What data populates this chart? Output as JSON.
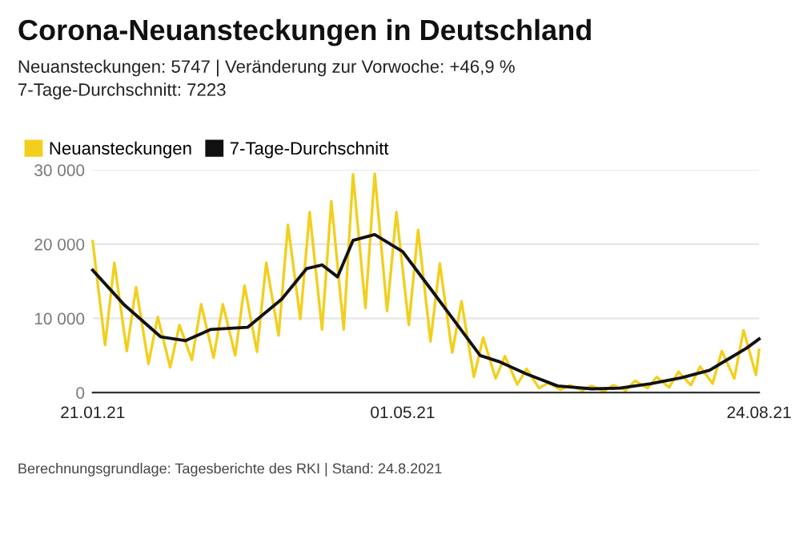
{
  "chart_data": {
    "type": "line",
    "title": "Corona-Neuansteckungen in Deutschland",
    "subtitle": "Neuansteckungen: 5747 | Veränderung zur Vorwoche: +46,9 %\n7-Tage-Durchschnitt: 7223",
    "annotations": [
      "Berechnungsgrundlage: Tagesberichte des RKI | Stand: 24.8.2021"
    ],
    "series": [
      {
        "name": "Neuansteckungen",
        "color": "#f2cf1d",
        "x": [
          "2021-01-21",
          "2021-01-25",
          "2021-01-28",
          "2021-02-01",
          "2021-02-04",
          "2021-02-08",
          "2021-02-11",
          "2021-02-15",
          "2021-02-18",
          "2021-02-22",
          "2021-02-25",
          "2021-03-01",
          "2021-03-04",
          "2021-03-08",
          "2021-03-11",
          "2021-03-15",
          "2021-03-18",
          "2021-03-22",
          "2021-03-25",
          "2021-03-29",
          "2021-04-01",
          "2021-04-05",
          "2021-04-08",
          "2021-04-12",
          "2021-04-15",
          "2021-04-19",
          "2021-04-22",
          "2021-04-26",
          "2021-04-29",
          "2021-05-03",
          "2021-05-06",
          "2021-05-10",
          "2021-05-13",
          "2021-05-17",
          "2021-05-20",
          "2021-05-24",
          "2021-05-27",
          "2021-05-31",
          "2021-06-03",
          "2021-06-07",
          "2021-06-10",
          "2021-06-14",
          "2021-06-17",
          "2021-06-21",
          "2021-06-24",
          "2021-06-28",
          "2021-07-01",
          "2021-07-05",
          "2021-07-08",
          "2021-07-12",
          "2021-07-15",
          "2021-07-19",
          "2021-07-22",
          "2021-07-26",
          "2021-07-29",
          "2021-08-02",
          "2021-08-05",
          "2021-08-09",
          "2021-08-12",
          "2021-08-16",
          "2021-08-19",
          "2021-08-23",
          "2021-08-24"
        ],
        "values": [
          20400,
          6400,
          17500,
          5600,
          14200,
          3900,
          10200,
          3400,
          9100,
          4400,
          11900,
          4700,
          11900,
          5000,
          14400,
          5500,
          17500,
          7700,
          22600,
          9900,
          24300,
          8500,
          25800,
          8500,
          29400,
          11400,
          29500,
          11000,
          24300,
          9100,
          21900,
          6900,
          17400,
          5400,
          12300,
          2100,
          7400,
          1900,
          4900,
          1100,
          3200,
          600,
          1300,
          400,
          1000,
          300,
          900,
          200,
          1000,
          300,
          1600,
          600,
          2100,
          700,
          2800,
          1000,
          3500,
          1200,
          5600,
          1900,
          8400,
          2400,
          5747
        ]
      },
      {
        "name": "7-Tage-Durchschnitt",
        "color": "#111111",
        "x": [
          "2021-01-21",
          "2021-01-31",
          "2021-02-12",
          "2021-02-20",
          "2021-02-28",
          "2021-03-12",
          "2021-03-23",
          "2021-03-31",
          "2021-04-05",
          "2021-04-10",
          "2021-04-15",
          "2021-04-22",
          "2021-05-01",
          "2021-05-10",
          "2021-05-18",
          "2021-05-26",
          "2021-06-01",
          "2021-06-10",
          "2021-06-20",
          "2021-07-01",
          "2021-07-10",
          "2021-07-20",
          "2021-07-30",
          "2021-08-08",
          "2021-08-14",
          "2021-08-20",
          "2021-08-24"
        ],
        "values": [
          16500,
          11900,
          7500,
          7000,
          8500,
          8800,
          12600,
          16700,
          17200,
          15600,
          20500,
          21300,
          19000,
          14000,
          9500,
          5000,
          4200,
          2500,
          900,
          500,
          600,
          1200,
          2000,
          3000,
          4500,
          6000,
          7223
        ]
      }
    ],
    "xlim": [
      "2021-01-21",
      "2021-08-24"
    ],
    "xticks": [
      {
        "value": "2021-01-21",
        "label": "21.01.21"
      },
      {
        "value": "2021-05-01",
        "label": "01.05.21"
      },
      {
        "value": "2021-08-24",
        "label": "24.08.21"
      }
    ],
    "ylim": [
      0,
      30000
    ],
    "yticks": [
      {
        "value": 0,
        "label": "0"
      },
      {
        "value": 10000,
        "label": "10 000"
      },
      {
        "value": 20000,
        "label": "20 000"
      },
      {
        "value": 30000,
        "label": "30 000"
      }
    ],
    "grid": "y",
    "legend": "top left"
  }
}
